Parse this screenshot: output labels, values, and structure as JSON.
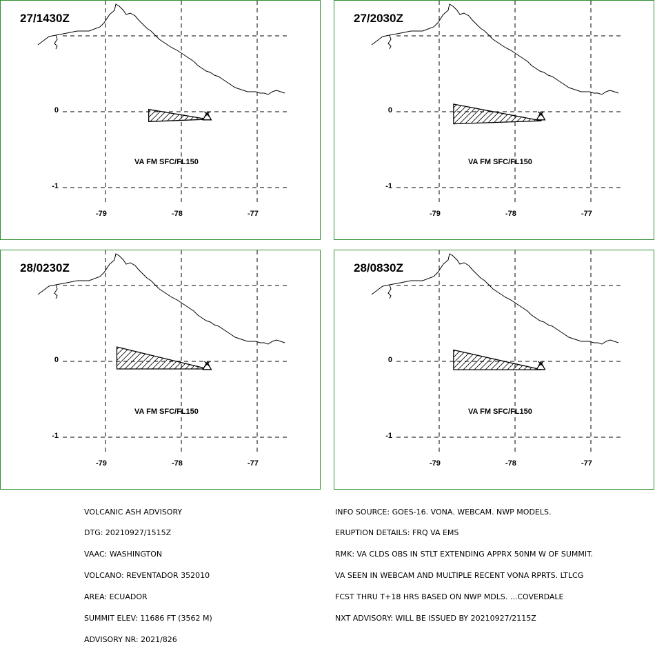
{
  "panels": [
    {
      "time": "27/1430Z",
      "label": "VA FM SFC/FL150",
      "lat_ticks": [
        "0",
        "-1"
      ],
      "lon_ticks": [
        "-79",
        "-78",
        "-77"
      ],
      "cloud": [
        [
          -78.43,
          0.03
        ],
        [
          -77.65,
          -0.1
        ],
        [
          -78.43,
          -0.13
        ]
      ]
    },
    {
      "time": "27/2030Z",
      "label": "VA FM SFC/FL150",
      "lat_ticks": [
        "0",
        "-1"
      ],
      "lon_ticks": [
        "-79",
        "-78",
        "-77"
      ],
      "cloud": [
        [
          -78.81,
          0.1
        ],
        [
          -77.65,
          -0.12
        ],
        [
          -78.81,
          -0.16
        ]
      ]
    },
    {
      "time": "28/0230Z",
      "label": "VA FM SFC/FL150",
      "lat_ticks": [
        "0",
        "-1"
      ],
      "lon_ticks": [
        "-79",
        "-78",
        "-77"
      ],
      "cloud": [
        [
          -78.85,
          0.19
        ],
        [
          -77.65,
          -0.1
        ],
        [
          -78.85,
          -0.1
        ]
      ]
    },
    {
      "time": "28/0830Z",
      "label": "VA FM SFC/FL150",
      "lat_ticks": [
        "0",
        "-1"
      ],
      "lon_ticks": [
        "-79",
        "-78",
        "-77"
      ],
      "cloud": [
        [
          -78.81,
          0.15
        ],
        [
          -77.65,
          -0.11
        ],
        [
          -78.81,
          -0.11
        ]
      ]
    }
  ],
  "volcano_position": [
    -77.66,
    -0.08
  ],
  "advisory_left": [
    "VOLCANIC ASH ADVISORY",
    "DTG: 20210927/1515Z",
    "VAAC: WASHINGTON",
    "VOLCANO: REVENTADOR 352010",
    "AREA: ECUADOR",
    "SUMMIT ELEV: 11686 FT (3562 M)",
    "ADVISORY NR: 2021/826"
  ],
  "advisory_right": [
    "INFO SOURCE: GOES-16. VONA. WEBCAM. NWP MODELS.",
    "ERUPTION DETAILS: FRQ VA EMS",
    "RMK: VA CLDS OBS IN STLT EXTENDING APPRX 50NM W OF SUMMIT.",
    "VA SEEN IN WEBCAM AND MULTIPLE RECENT VONA RPRTS. LTLCG",
    "FCST THRU T+18 HRS BASED ON NWP MDLS. ...COVERDALE",
    "NXT ADVISORY: WILL BE ISSUED BY 20210927/2115Z"
  ],
  "colors": {
    "panel_border": "#2f8f2f"
  }
}
